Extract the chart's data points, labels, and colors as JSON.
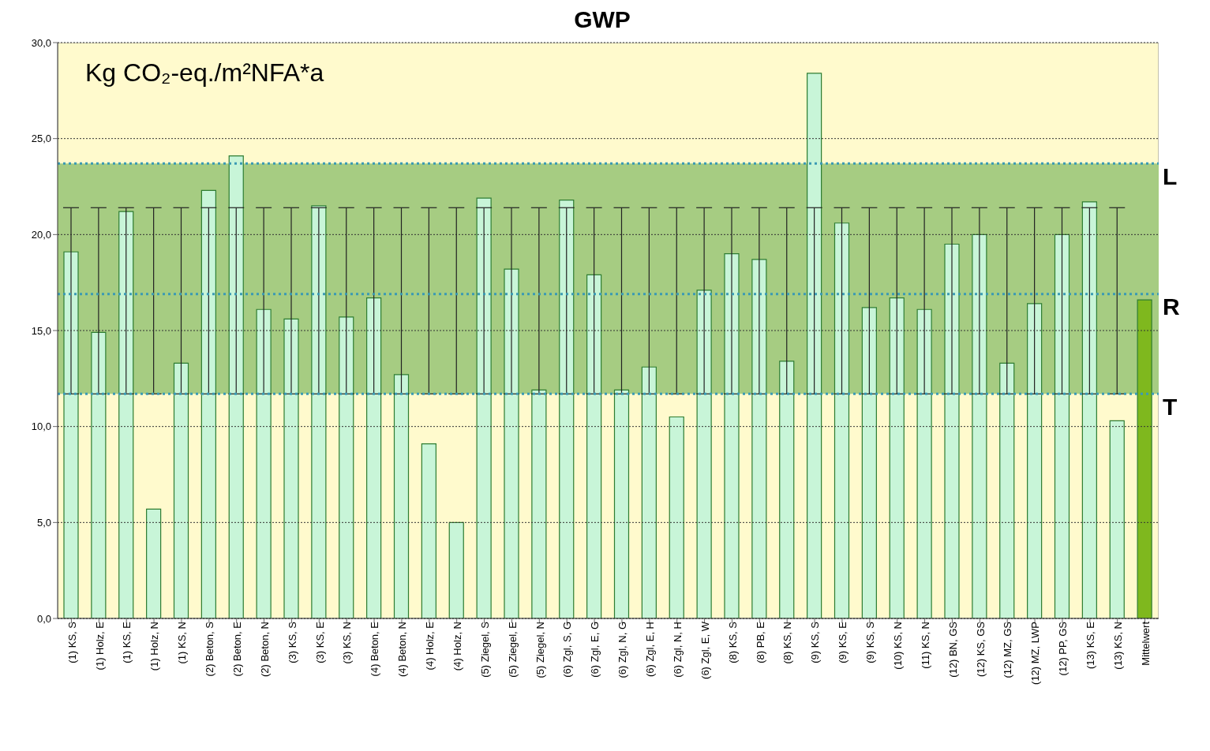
{
  "chart_data": {
    "type": "bar",
    "title": "GWP",
    "annotations": [
      "Kg CO₂-eq./m²NFA*a"
    ],
    "categories": [
      "(1) KS, S",
      "(1) Holz, E",
      "(1) KS, E",
      "(1) Holz, N",
      "(1) KS, N",
      "(2) Beton, S",
      "(2) Beton, E",
      "(2) Beton, N",
      "(3) KS, S",
      "(3) KS, E",
      "(3) KS, N",
      "(4) Beton, E",
      "(4) Beton, N",
      "(4) Holz, E",
      "(4) Holz, N",
      "(5) Ziegel, S",
      "(5) Ziegel, E",
      "(5) Ziegel, N",
      "(6) Zgl, S, G",
      "(6) Zgl, E, G",
      "(6) Zgl, N, G",
      "(6) Zgl, E, H",
      "(6) Zgl, N, H",
      "(6) Zgl, E, W",
      "(8) KS, S",
      "(8) PB, E",
      "(8) KS, N",
      "(9) KS, S",
      "(9) KS, E",
      "(9) KS, S",
      "(10) KS, N",
      "(11) KS, N",
      "(12) BN, GS",
      "(12) KS, GS",
      "(12) MZ, GS",
      "(12) MZ, LWP",
      "(12) PP, GS",
      "(13) KS, E",
      "(13) KS, N",
      "Mittelwert"
    ],
    "values": [
      19.1,
      14.9,
      21.2,
      5.7,
      13.3,
      22.3,
      24.1,
      16.1,
      15.6,
      21.5,
      15.7,
      16.7,
      12.7,
      9.1,
      5.0,
      21.9,
      18.2,
      11.9,
      21.8,
      17.9,
      11.9,
      13.1,
      10.5,
      17.1,
      19.0,
      18.7,
      13.4,
      28.4,
      20.6,
      16.2,
      16.7,
      16.1,
      19.5,
      20.0,
      13.3,
      16.4,
      20.0,
      21.7,
      10.3,
      16.6
    ],
    "colors": [
      "#c8f5d8",
      "#c8f5d8",
      "#c8f5d8",
      "#c8f5d8",
      "#c8f5d8",
      "#c8f5d8",
      "#c8f5d8",
      "#c8f5d8",
      "#c8f5d8",
      "#c8f5d8",
      "#c8f5d8",
      "#c8f5d8",
      "#c8f5d8",
      "#c8f5d8",
      "#c8f5d8",
      "#c8f5d8",
      "#c8f5d8",
      "#c8f5d8",
      "#c8f5d8",
      "#c8f5d8",
      "#c8f5d8",
      "#c8f5d8",
      "#c8f5d8",
      "#c8f5d8",
      "#c8f5d8",
      "#c8f5d8",
      "#c8f5d8",
      "#c8f5d8",
      "#c8f5d8",
      "#c8f5d8",
      "#c8f5d8",
      "#c8f5d8",
      "#c8f5d8",
      "#c8f5d8",
      "#c8f5d8",
      "#c8f5d8",
      "#c8f5d8",
      "#c8f5d8",
      "#c8f5d8",
      "#7fb81e"
    ],
    "errors": [
      [
        11.7,
        21.4
      ],
      [
        11.7,
        21.4
      ],
      [
        11.7,
        21.4
      ],
      [
        11.7,
        21.4
      ],
      [
        11.7,
        21.4
      ],
      [
        11.7,
        21.4
      ],
      [
        11.7,
        21.4
      ],
      [
        11.7,
        21.4
      ],
      [
        11.7,
        21.4
      ],
      [
        11.7,
        21.4
      ],
      [
        11.7,
        21.4
      ],
      [
        11.7,
        21.4
      ],
      [
        11.7,
        21.4
      ],
      [
        11.7,
        21.4
      ],
      [
        11.7,
        21.4
      ],
      [
        11.7,
        21.4
      ],
      [
        11.7,
        21.4
      ],
      [
        11.7,
        21.4
      ],
      [
        11.7,
        21.4
      ],
      [
        11.7,
        21.4
      ],
      [
        11.7,
        21.4
      ],
      [
        11.7,
        21.4
      ],
      [
        11.7,
        21.4
      ],
      [
        11.7,
        21.4
      ],
      [
        11.7,
        21.4
      ],
      [
        11.7,
        21.4
      ],
      [
        11.7,
        21.4
      ],
      [
        11.7,
        21.4
      ],
      [
        11.7,
        21.4
      ],
      [
        11.7,
        21.4
      ],
      [
        11.7,
        21.4
      ],
      [
        11.7,
        21.4
      ],
      [
        11.7,
        21.4
      ],
      [
        11.7,
        21.4
      ],
      [
        11.7,
        21.4
      ],
      [
        11.7,
        21.4
      ],
      [
        11.7,
        21.4
      ],
      [
        11.7,
        21.4
      ],
      [
        11.7,
        21.4
      ],
      null
    ],
    "ylim": [
      0,
      30
    ],
    "yticks": [
      {
        "value": 0,
        "label": "0,0"
      },
      {
        "value": 5,
        "label": "5,0"
      },
      {
        "value": 10,
        "label": "10,0"
      },
      {
        "value": 15,
        "label": "15,0"
      },
      {
        "value": 20,
        "label": "20,0"
      },
      {
        "value": 25,
        "label": "25,0"
      },
      {
        "value": 30,
        "label": "30,0"
      }
    ],
    "grid": "y",
    "bands": [
      {
        "axis": "y",
        "from": 11.7,
        "to": 23.7,
        "color": "#a6cc82"
      }
    ],
    "ref_lines": [
      {
        "axis": "y",
        "value": 23.7,
        "label": "L",
        "color": "#3a9ab4",
        "line_style": "dotted"
      },
      {
        "axis": "y",
        "value": 16.9,
        "label": "R",
        "color": "#3a9ab4",
        "line_style": "dotted"
      },
      {
        "axis": "y",
        "value": 11.7,
        "label": "T",
        "color": "#3a9ab4",
        "line_style": "dotted"
      }
    ]
  }
}
